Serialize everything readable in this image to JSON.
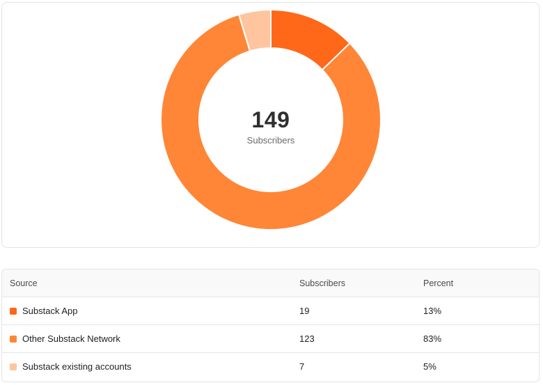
{
  "chart": {
    "center_value": "149",
    "center_label": "Subscribers"
  },
  "chart_data": {
    "type": "pie",
    "donut": true,
    "categories": [
      "Substack App",
      "Other Substack Network",
      "Substack existing accounts"
    ],
    "values": [
      19,
      123,
      7
    ],
    "colors": [
      "#ff6719",
      "#ff8636",
      "#ffc59f"
    ],
    "total": 149
  },
  "table": {
    "headers": {
      "source": "Source",
      "subscribers": "Subscribers",
      "percent": "Percent"
    },
    "rows": [
      {
        "source": "Substack App",
        "subscribers": "19",
        "percent": "13%",
        "color": "#ff6719"
      },
      {
        "source": "Other Substack Network",
        "subscribers": "123",
        "percent": "83%",
        "color": "#ff8636"
      },
      {
        "source": "Substack existing accounts",
        "subscribers": "7",
        "percent": "5%",
        "color": "#ffc59f"
      }
    ]
  }
}
